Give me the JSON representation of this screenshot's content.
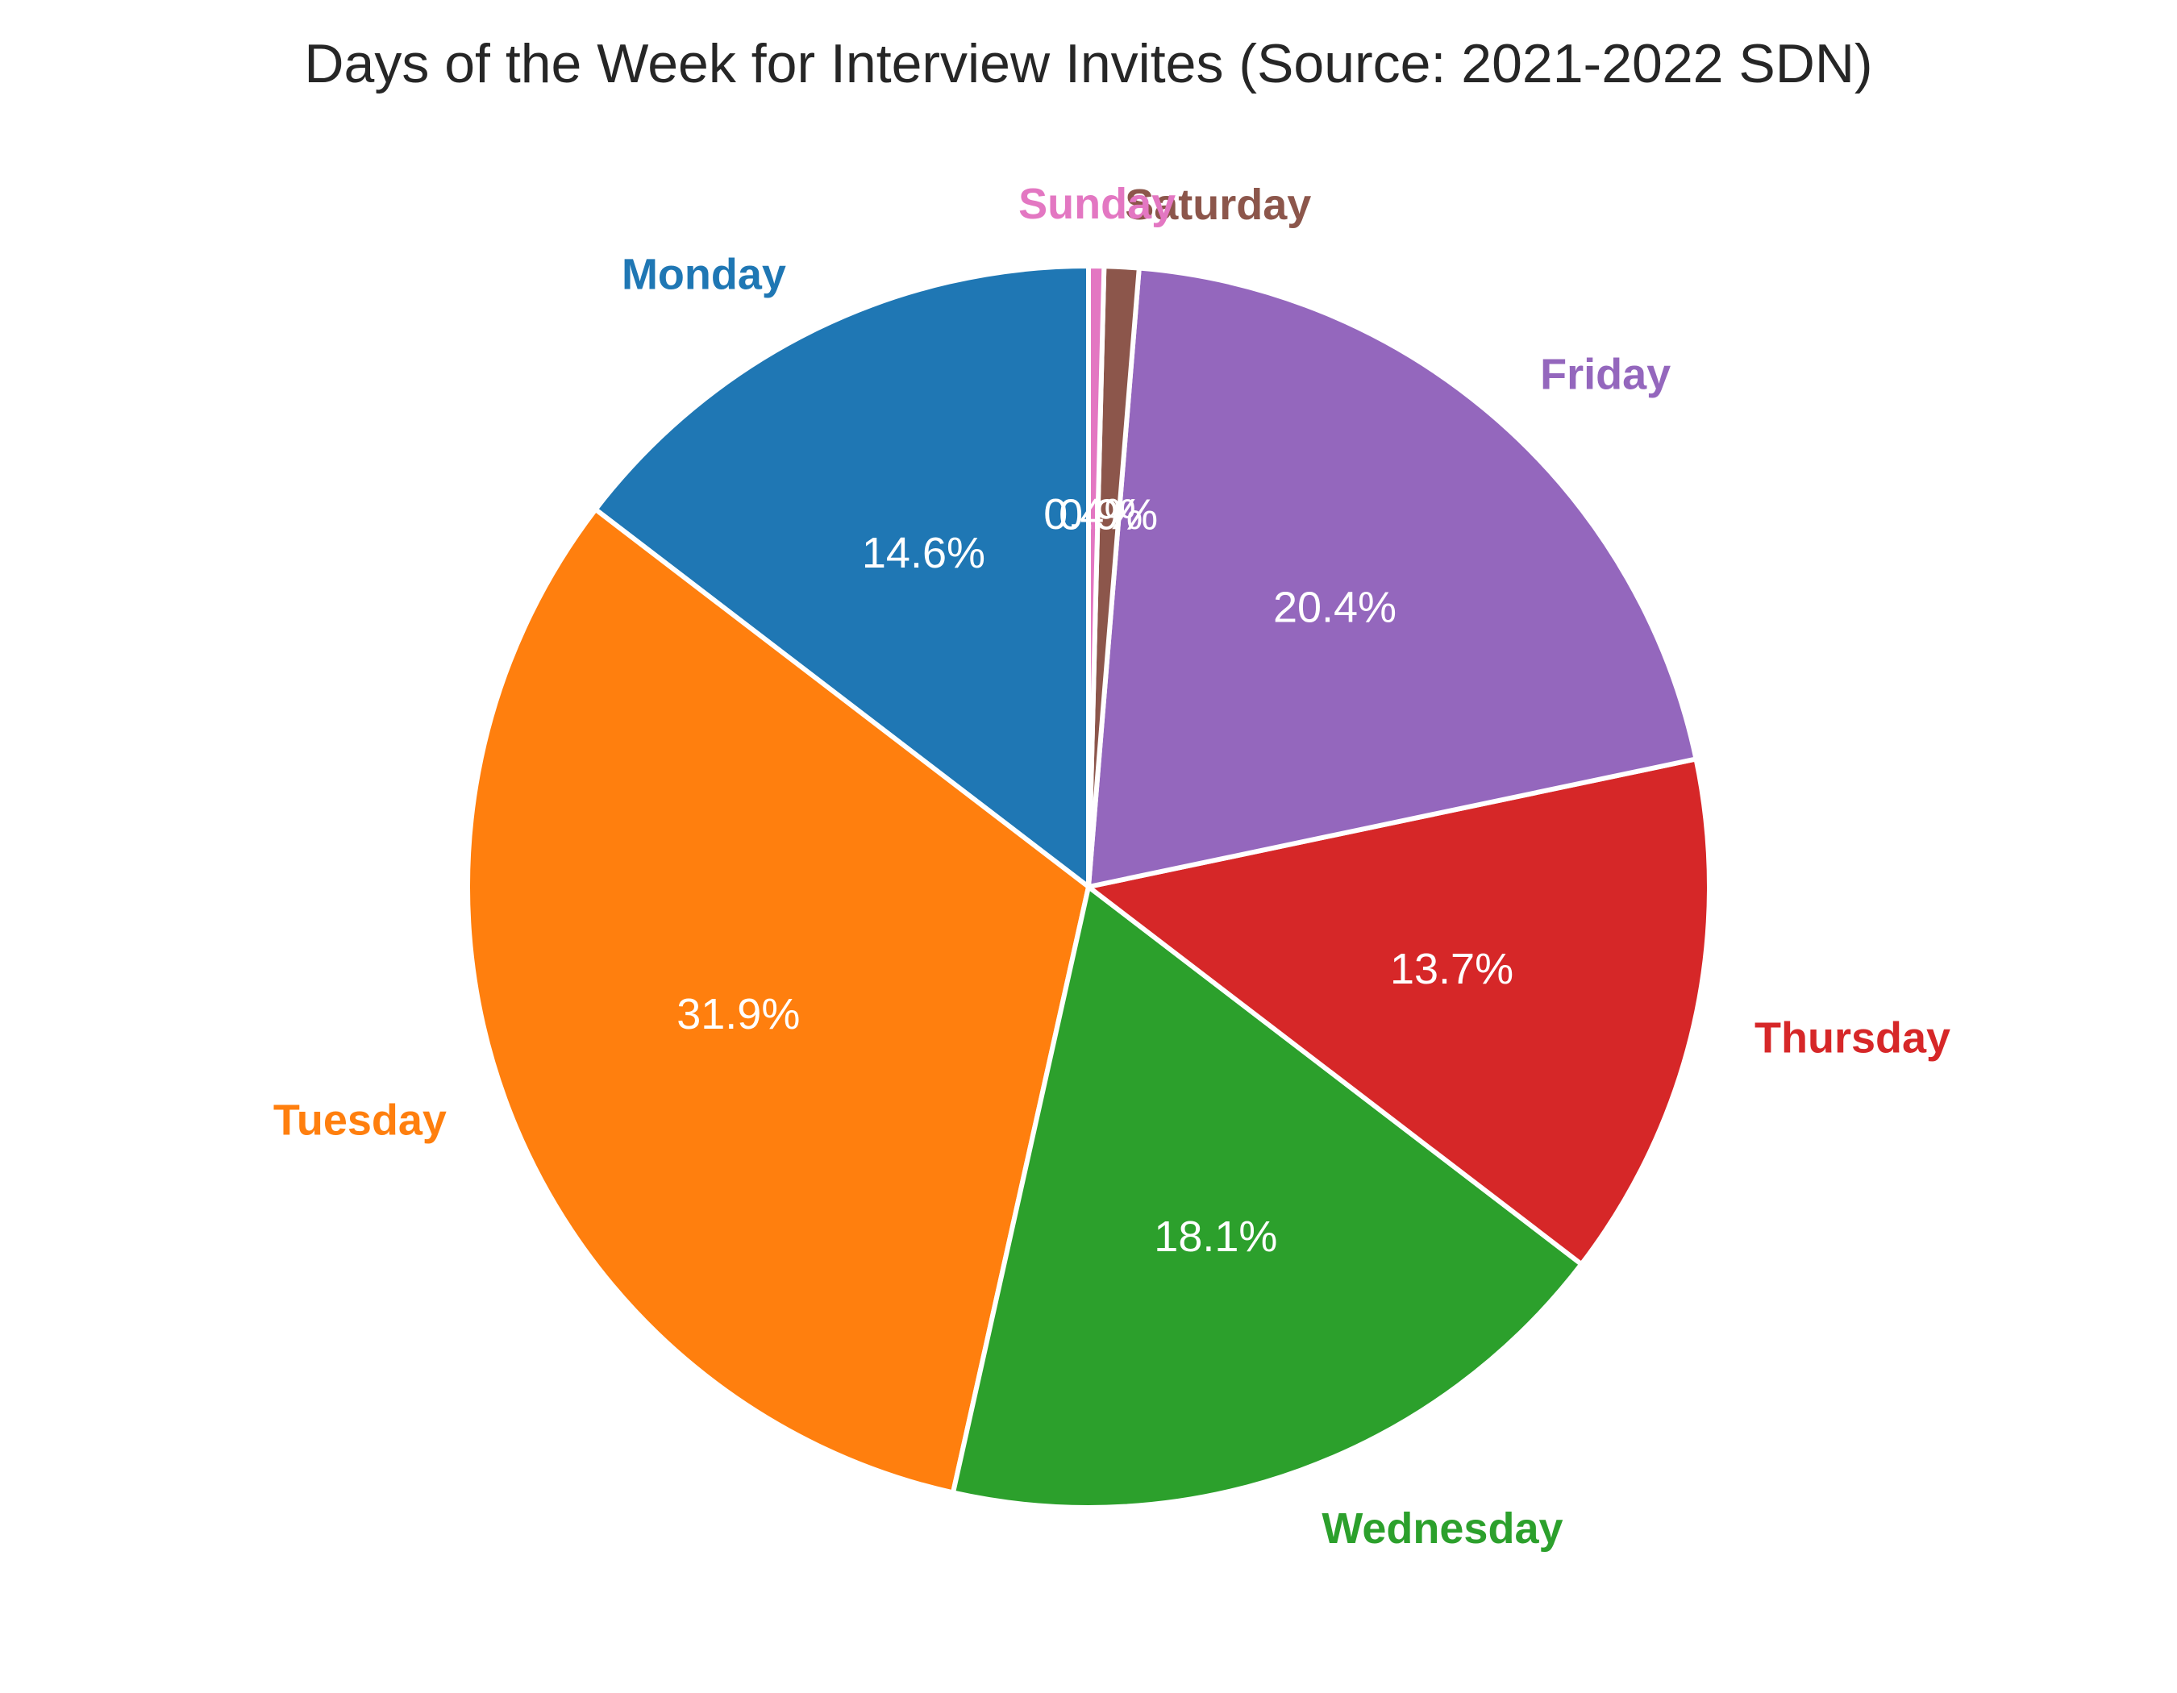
{
  "chart_data": {
    "type": "pie",
    "title": "Days of the Week for Interview Invites (Source: 2021-2022 SDN)",
    "start_angle_deg": 90,
    "direction": "counterclockwise",
    "slices": [
      {
        "label": "Monday",
        "value": 14.6,
        "pct_label": "14.6%",
        "color": "#1f77b4"
      },
      {
        "label": "Tuesday",
        "value": 31.9,
        "pct_label": "31.9%",
        "color": "#ff7f0e"
      },
      {
        "label": "Wednesday",
        "value": 18.1,
        "pct_label": "18.1%",
        "color": "#2ca02c"
      },
      {
        "label": "Thursday",
        "value": 13.7,
        "pct_label": "13.7%",
        "color": "#d62728"
      },
      {
        "label": "Friday",
        "value": 20.4,
        "pct_label": "20.4%",
        "color": "#9467bd"
      },
      {
        "label": "Saturday",
        "value": 0.9,
        "pct_label": "0.9%",
        "color": "#8c564b"
      },
      {
        "label": "Sunday",
        "value": 0.4,
        "pct_label": "0.4%",
        "color": "#e377c2"
      }
    ]
  }
}
